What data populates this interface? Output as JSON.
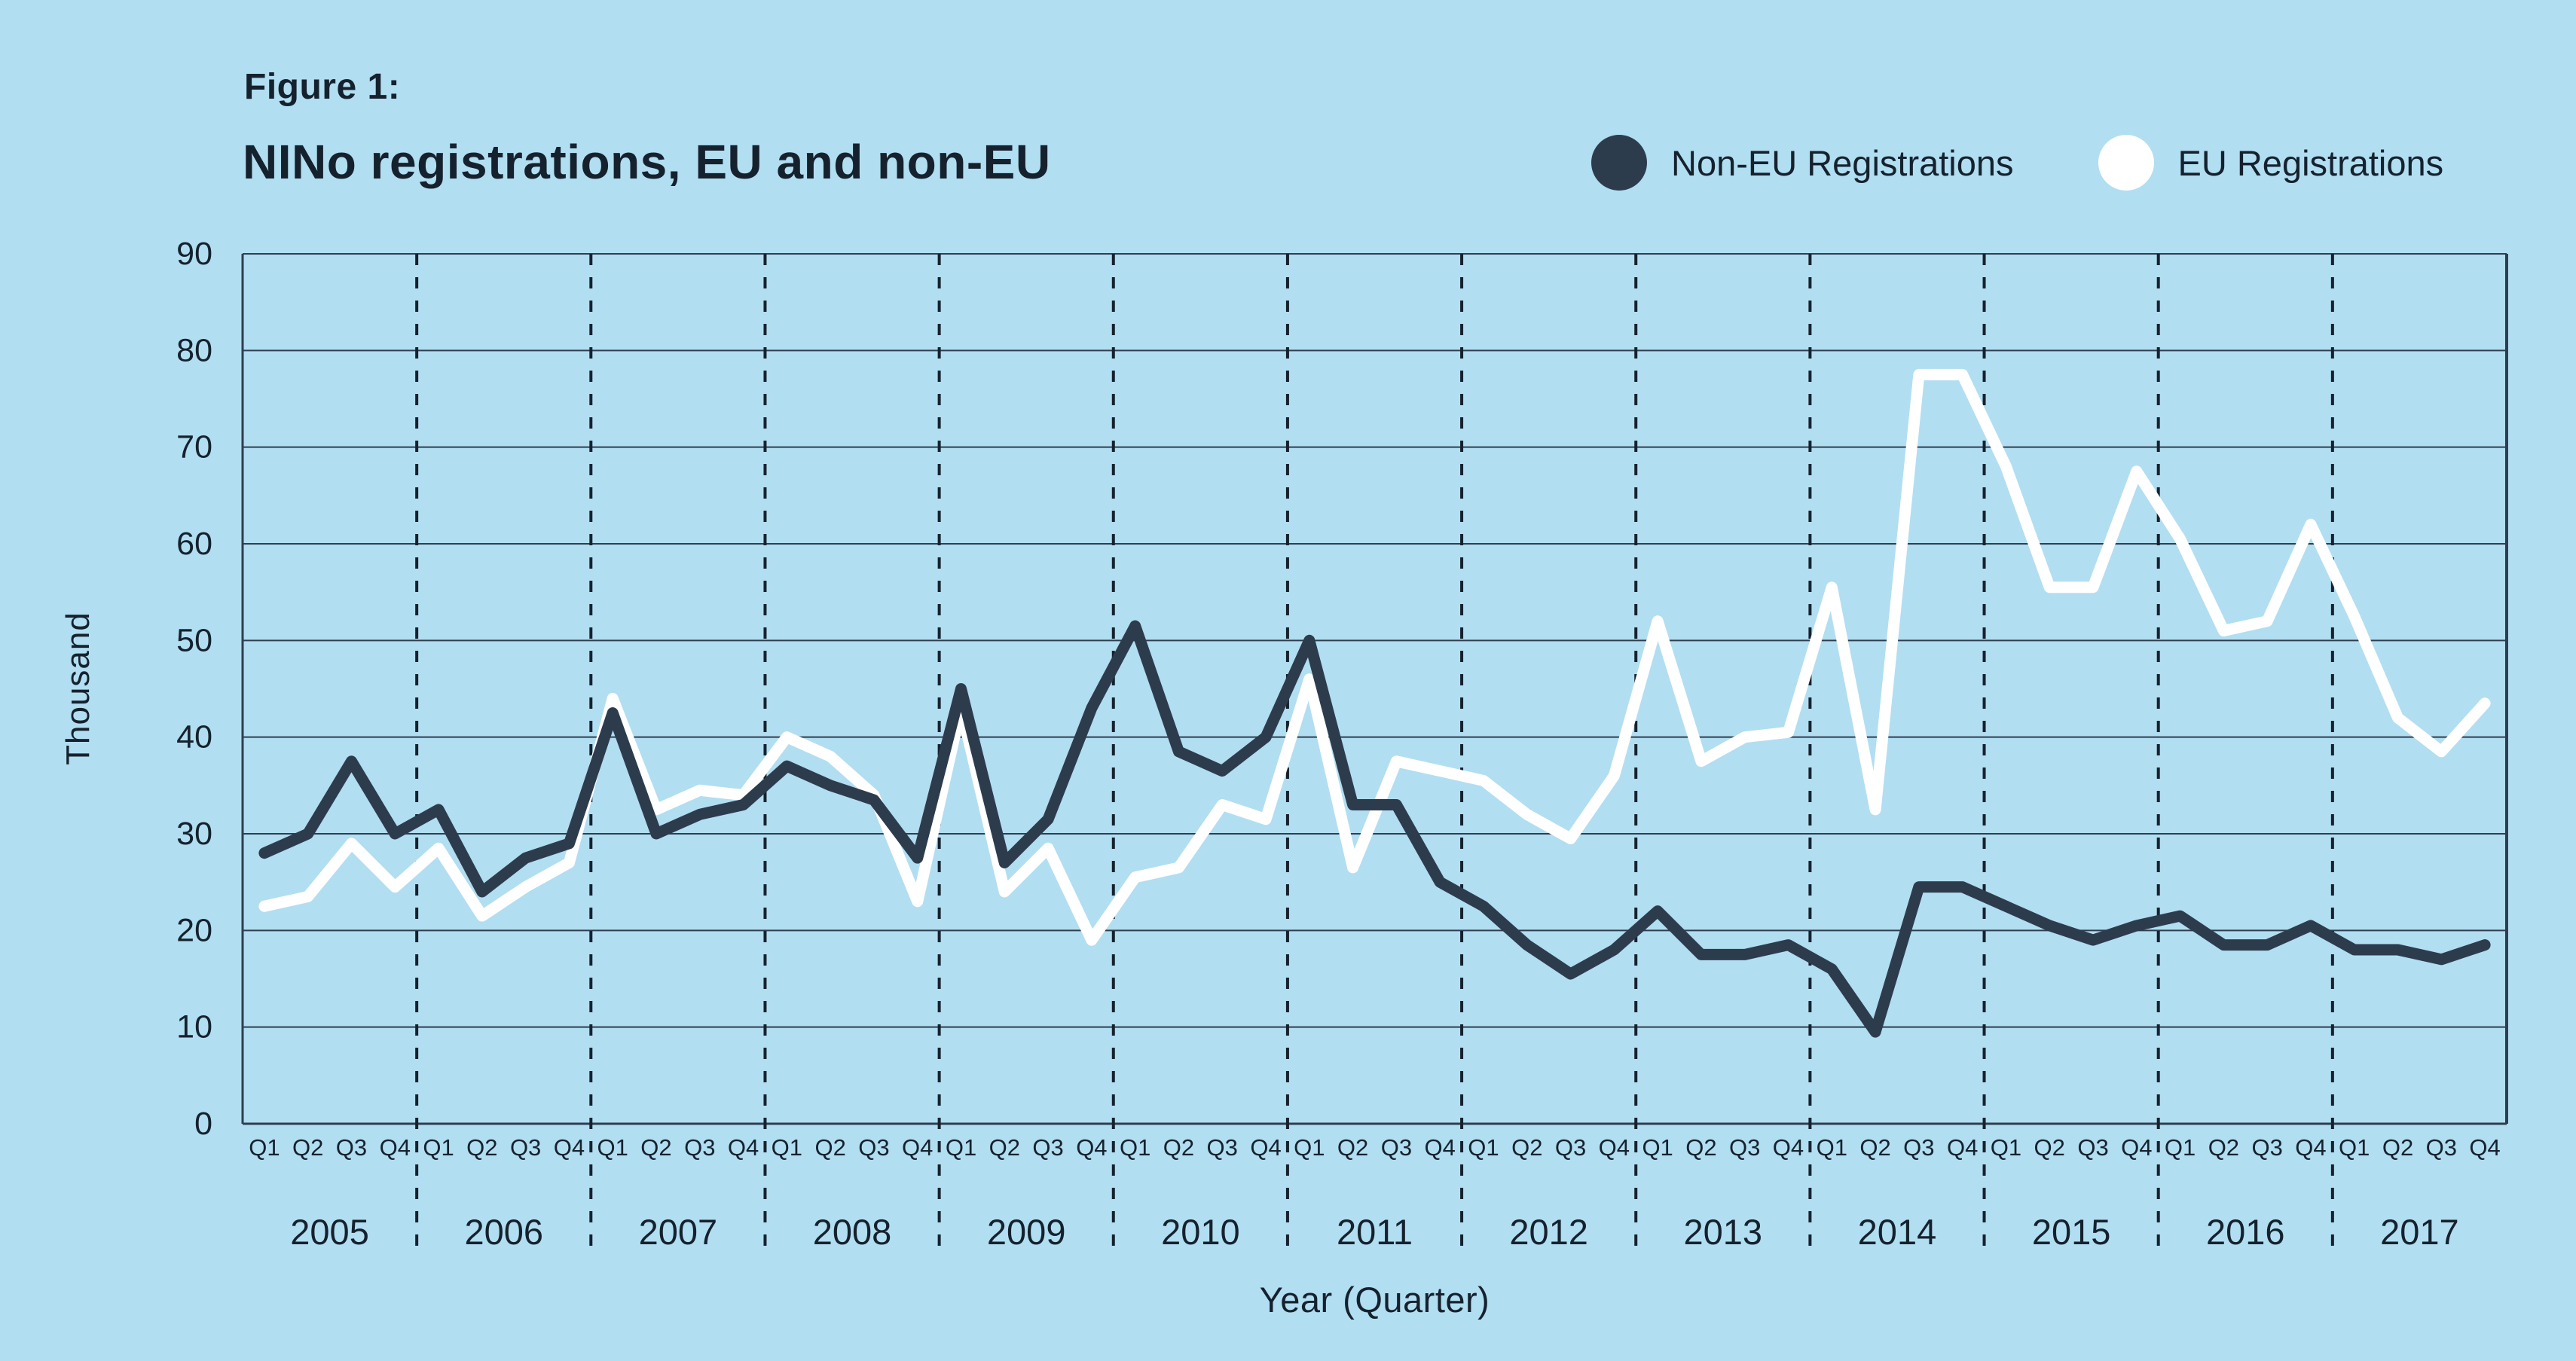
{
  "figure_label": "Figure 1:",
  "title": "NINo registrations, EU and non-EU",
  "y_axis_label": "Thousand",
  "x_axis_label": "Year (Quarter)",
  "legend": [
    {
      "label": "Non-EU Registrations",
      "color": "#2d3c4d"
    },
    {
      "label": "EU Registrations",
      "color": "#ffffff"
    }
  ],
  "colors": {
    "background": "#b2def1",
    "text": "#15222e",
    "grid": "#2f3e4e",
    "non_eu_line": "#2d3c4d",
    "eu_line": "#ffffff"
  },
  "chart_data": {
    "type": "line",
    "title": "NINo registrations, EU and non-EU",
    "xlabel": "Year (Quarter)",
    "ylabel": "Thousand",
    "ylim": [
      0,
      90
    ],
    "ytick_step": 10,
    "grid": true,
    "legend_position": "top-right",
    "years": [
      2005,
      2006,
      2007,
      2008,
      2009,
      2010,
      2011,
      2012,
      2013,
      2014,
      2015,
      2016,
      2017
    ],
    "quarter_labels": [
      "Q1",
      "Q2",
      "Q3",
      "Q4"
    ],
    "series": [
      {
        "name": "Non-EU Registrations",
        "color": "#2d3c4d",
        "values": [
          28,
          30,
          37.5,
          30,
          32.5,
          24,
          27.5,
          29,
          42.5,
          30,
          32,
          33,
          37,
          35,
          33.5,
          27.5,
          45,
          27,
          31.5,
          43,
          51.5,
          38.5,
          36.5,
          40,
          50,
          33,
          33,
          25,
          22.5,
          18.5,
          15.5,
          18,
          22,
          17.5,
          17.5,
          18.5,
          16,
          9.5,
          24.5,
          24.5,
          22.5,
          20.5,
          19,
          20.5,
          21.5,
          18.5,
          18.5,
          20.5,
          18,
          18,
          17,
          18.5
        ]
      },
      {
        "name": "EU Registrations",
        "color": "#ffffff",
        "values": [
          22.5,
          23.5,
          29,
          24.5,
          28.5,
          21.5,
          24.5,
          27,
          44,
          32.5,
          34.5,
          34,
          40,
          38,
          34,
          23,
          43,
          24,
          28.5,
          19,
          25.5,
          26.5,
          33,
          31.5,
          46,
          26.5,
          37.5,
          36.5,
          35.5,
          32,
          29.5,
          36,
          52,
          37.5,
          40,
          40.5,
          55.5,
          32.5,
          77.5,
          77.5,
          68,
          55.5,
          55.5,
          67.5,
          60.5,
          51,
          52,
          62,
          52.5,
          42,
          38.5,
          43.5
        ]
      }
    ]
  }
}
